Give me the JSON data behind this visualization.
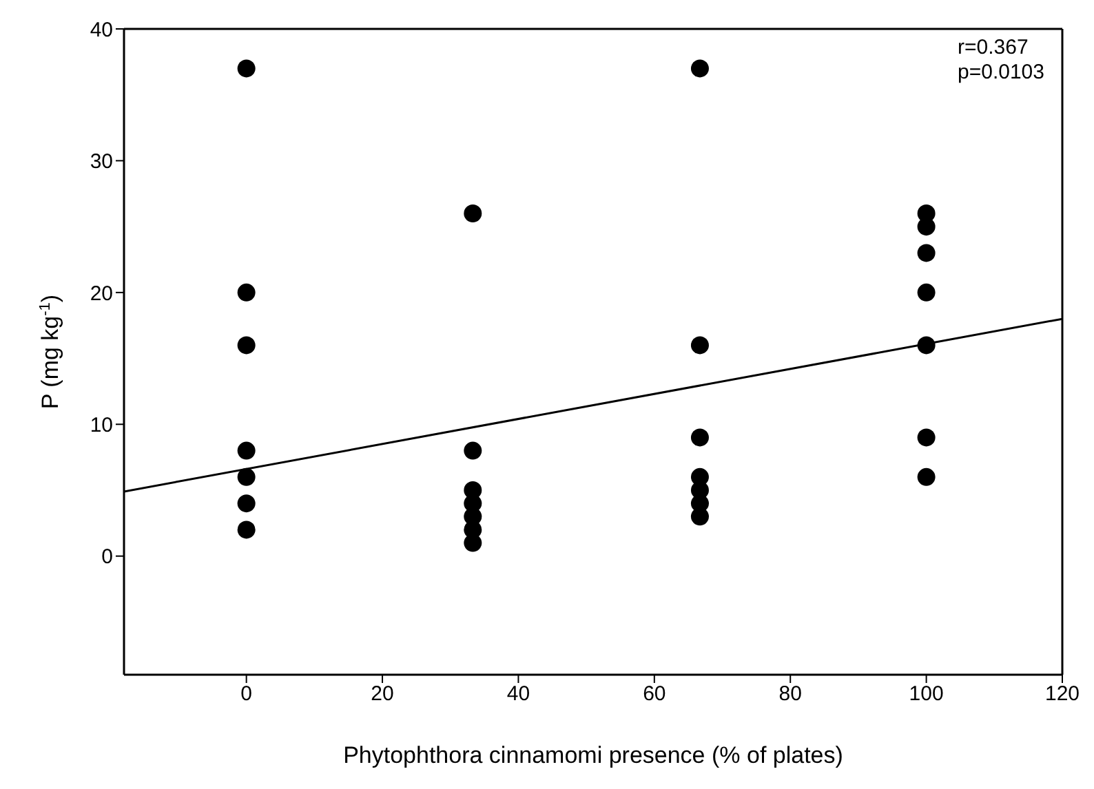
{
  "chart_data": {
    "type": "scatter",
    "xlabel": "Phytophthora cinnamomi presence (% of plates)",
    "ylabel": "P (mg kg$^{-1}$)",
    "annotations": [
      "r=0.367",
      "p=0.0103"
    ],
    "xlim": [
      -18,
      120
    ],
    "ylim": [
      -9,
      40
    ],
    "xticks": [
      0,
      20,
      40,
      60,
      80,
      100,
      120
    ],
    "yticks": [
      0,
      10,
      20,
      30,
      40
    ],
    "marker": "circle",
    "series": [
      {
        "color": "#000000",
        "x": [
          0,
          0,
          0,
          0,
          0,
          0,
          0,
          33.3,
          33.3,
          33.3,
          33.3,
          33.3,
          33.3,
          33.3,
          66.7,
          66.7,
          66.7,
          66.7,
          66.7,
          66.7,
          66.7,
          100,
          100,
          100,
          100,
          100,
          100,
          100
        ],
        "values": [
          37,
          20,
          16,
          8,
          6,
          4,
          2,
          26,
          8,
          5,
          4,
          3,
          2,
          1,
          37,
          16,
          9,
          6,
          5,
          4,
          3,
          26,
          25,
          23,
          20,
          16,
          9,
          6
        ]
      },
      {
        "type": "line",
        "color": "#000000",
        "marker": "none",
        "x": [
          -18,
          120
        ],
        "values": [
          4.9,
          18
        ]
      }
    ]
  }
}
